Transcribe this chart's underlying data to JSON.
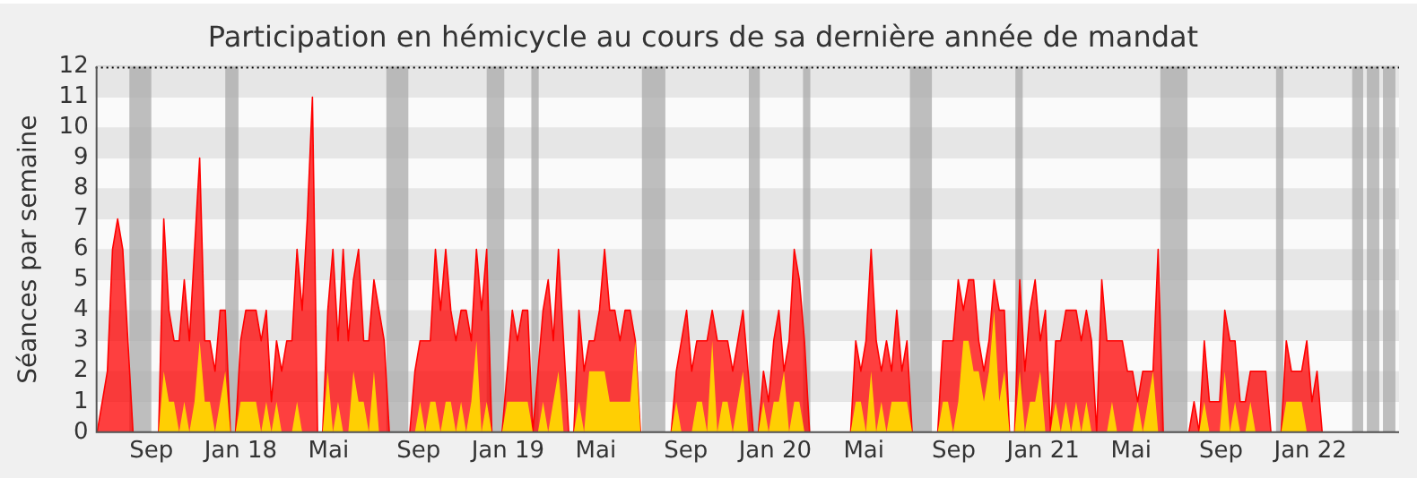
{
  "chart_data": {
    "type": "area",
    "title": "Participation en hémicycle au cours de sa dernière année de mandat",
    "ylabel": "Séances par semaine",
    "x": [
      "2017-06-19",
      "2017-06-26",
      "2017-07-03",
      "2017-07-10",
      "2017-07-17",
      "2017-07-24",
      "2017-07-31",
      "2017-08-07",
      "2017-08-14",
      "2017-08-21",
      "2017-08-28",
      "2017-09-04",
      "2017-09-11",
      "2017-09-18",
      "2017-09-25",
      "2017-10-02",
      "2017-10-09",
      "2017-10-16",
      "2017-10-23",
      "2017-10-30",
      "2017-11-06",
      "2017-11-13",
      "2017-11-20",
      "2017-11-27",
      "2017-12-04",
      "2017-12-11",
      "2017-12-18",
      "2017-12-25",
      "2018-01-01",
      "2018-01-08",
      "2018-01-15",
      "2018-01-22",
      "2018-01-29",
      "2018-02-05",
      "2018-02-12",
      "2018-02-19",
      "2018-02-26",
      "2018-03-05",
      "2018-03-12",
      "2018-03-19",
      "2018-03-26",
      "2018-04-02",
      "2018-04-09",
      "2018-04-16",
      "2018-04-23",
      "2018-04-30",
      "2018-05-07",
      "2018-05-14",
      "2018-05-21",
      "2018-05-28",
      "2018-06-04",
      "2018-06-11",
      "2018-06-18",
      "2018-06-25",
      "2018-07-02",
      "2018-07-09",
      "2018-07-16",
      "2018-07-23",
      "2018-07-30",
      "2018-08-06",
      "2018-08-13",
      "2018-08-20",
      "2018-08-27",
      "2018-09-03",
      "2018-09-10",
      "2018-09-17",
      "2018-09-24",
      "2018-10-01",
      "2018-10-08",
      "2018-10-15",
      "2018-10-22",
      "2018-10-29",
      "2018-11-05",
      "2018-11-12",
      "2018-11-19",
      "2018-11-26",
      "2018-12-03",
      "2018-12-10",
      "2018-12-17",
      "2018-12-24",
      "2018-12-31",
      "2019-01-07",
      "2019-01-14",
      "2019-01-21",
      "2019-01-28",
      "2019-02-04",
      "2019-02-11",
      "2019-02-18",
      "2019-02-25",
      "2019-03-04",
      "2019-03-11",
      "2019-03-18",
      "2019-03-25",
      "2019-04-01",
      "2019-04-08",
      "2019-04-15",
      "2019-04-22",
      "2019-04-29",
      "2019-05-06",
      "2019-05-13",
      "2019-05-20",
      "2019-05-27",
      "2019-06-03",
      "2019-06-10",
      "2019-06-17",
      "2019-06-24",
      "2019-07-01",
      "2019-07-08",
      "2019-07-15",
      "2019-07-22",
      "2019-07-29",
      "2019-08-05",
      "2019-08-12",
      "2019-08-19",
      "2019-08-26",
      "2019-09-02",
      "2019-09-09",
      "2019-09-16",
      "2019-09-23",
      "2019-09-30",
      "2019-10-07",
      "2019-10-14",
      "2019-10-21",
      "2019-10-28",
      "2019-11-04",
      "2019-11-11",
      "2019-11-18",
      "2019-11-25",
      "2019-12-02",
      "2019-12-09",
      "2019-12-16",
      "2019-12-23",
      "2019-12-30",
      "2020-01-06",
      "2020-01-13",
      "2020-01-20",
      "2020-01-27",
      "2020-02-03",
      "2020-02-10",
      "2020-02-17",
      "2020-02-24",
      "2020-03-02",
      "2020-03-09",
      "2020-03-16",
      "2020-03-23",
      "2020-03-30",
      "2020-04-06",
      "2020-04-13",
      "2020-04-20",
      "2020-04-27",
      "2020-05-04",
      "2020-05-11",
      "2020-05-18",
      "2020-05-25",
      "2020-06-01",
      "2020-06-08",
      "2020-06-15",
      "2020-06-22",
      "2020-06-29",
      "2020-07-06",
      "2020-07-13",
      "2020-07-20",
      "2020-07-27",
      "2020-08-03",
      "2020-08-10",
      "2020-08-17",
      "2020-08-24",
      "2020-08-31",
      "2020-09-07",
      "2020-09-14",
      "2020-09-21",
      "2020-09-28",
      "2020-10-05",
      "2020-10-12",
      "2020-10-19",
      "2020-10-26",
      "2020-11-02",
      "2020-11-09",
      "2020-11-16",
      "2020-11-23",
      "2020-11-30",
      "2020-12-07",
      "2020-12-14",
      "2020-12-21",
      "2020-12-28",
      "2021-01-04",
      "2021-01-11",
      "2021-01-18",
      "2021-01-25",
      "2021-02-01",
      "2021-02-08",
      "2021-02-15",
      "2021-02-22",
      "2021-03-01",
      "2021-03-08",
      "2021-03-15",
      "2021-03-22",
      "2021-03-29",
      "2021-04-05",
      "2021-04-12",
      "2021-04-19",
      "2021-04-26",
      "2021-05-03",
      "2021-05-10",
      "2021-05-17",
      "2021-05-24",
      "2021-05-31",
      "2021-06-07",
      "2021-06-14",
      "2021-06-21",
      "2021-06-28",
      "2021-07-05",
      "2021-07-12",
      "2021-07-19",
      "2021-07-26",
      "2021-08-02",
      "2021-08-09",
      "2021-08-16",
      "2021-08-23",
      "2021-08-30",
      "2021-09-06",
      "2021-09-13",
      "2021-09-20",
      "2021-09-27",
      "2021-10-04",
      "2021-10-11",
      "2021-10-18",
      "2021-10-25",
      "2021-11-01",
      "2021-11-08",
      "2021-11-15",
      "2021-11-22",
      "2021-11-29",
      "2021-12-06",
      "2021-12-13",
      "2021-12-20",
      "2021-12-27",
      "2022-01-03",
      "2022-01-10",
      "2022-01-17",
      "2022-01-24",
      "2022-01-31",
      "2022-02-07",
      "2022-02-14",
      "2022-02-21",
      "2022-02-28",
      "2022-03-07",
      "2022-03-14",
      "2022-03-21",
      "2022-03-28",
      "2022-04-04",
      "2022-04-11",
      "2022-04-18",
      "2022-04-25"
    ],
    "series": [
      {
        "color": "#ff0000",
        "values": [
          0,
          1,
          2,
          6,
          7,
          6,
          3,
          0,
          0,
          0,
          0,
          0,
          0,
          7,
          4,
          3,
          3,
          5,
          3,
          6,
          9,
          3,
          3,
          2,
          4,
          4,
          0,
          0,
          3,
          4,
          4,
          4,
          3,
          4,
          1,
          3,
          2,
          3,
          3,
          6,
          4,
          7,
          11,
          0,
          0,
          4,
          6,
          3,
          6,
          3,
          5,
          6,
          3,
          3,
          5,
          4,
          3,
          0,
          0,
          0,
          0,
          0,
          2,
          3,
          3,
          3,
          6,
          4,
          6,
          4,
          3,
          4,
          4,
          3,
          6,
          4,
          6,
          0,
          0,
          0,
          2,
          4,
          3,
          4,
          4,
          0,
          2,
          4,
          5,
          3,
          6,
          3,
          0,
          0,
          4,
          2,
          3,
          3,
          4,
          6,
          4,
          4,
          3,
          4,
          4,
          3,
          0,
          0,
          0,
          0,
          0,
          0,
          0,
          2,
          3,
          4,
          2,
          3,
          3,
          3,
          4,
          3,
          3,
          3,
          2,
          3,
          4,
          2,
          0,
          0,
          2,
          1,
          3,
          4,
          2,
          3,
          6,
          5,
          3,
          0,
          0,
          0,
          0,
          0,
          0,
          0,
          0,
          0,
          3,
          2,
          3,
          6,
          3,
          2,
          3,
          2,
          4,
          2,
          3,
          0,
          0,
          0,
          0,
          0,
          0,
          3,
          3,
          3,
          5,
          4,
          5,
          5,
          3,
          2,
          3,
          5,
          4,
          4,
          0,
          0,
          5,
          2,
          4,
          5,
          3,
          4,
          0,
          3,
          3,
          4,
          4,
          4,
          3,
          4,
          3,
          0,
          5,
          3,
          3,
          3,
          3,
          2,
          2,
          1,
          2,
          2,
          2,
          6,
          0,
          0,
          0,
          0,
          0,
          0,
          1,
          0,
          3,
          1,
          1,
          1,
          4,
          3,
          3,
          1,
          1,
          2,
          2,
          2,
          2,
          0,
          0,
          0,
          3,
          2,
          2,
          2,
          3,
          1,
          2,
          0,
          0,
          0,
          0,
          0,
          0,
          0,
          0,
          0,
          0,
          0,
          0,
          0,
          0,
          0
        ]
      },
      {
        "color": "#ffd700",
        "values": [
          0,
          0,
          0,
          0,
          0,
          0,
          0,
          0,
          0,
          0,
          0,
          0,
          0,
          2,
          1,
          1,
          0,
          1,
          0,
          1,
          3,
          1,
          1,
          0,
          1,
          2,
          0,
          0,
          1,
          1,
          1,
          1,
          0,
          1,
          0,
          1,
          0,
          0,
          0,
          1,
          0,
          0,
          0,
          0,
          0,
          2,
          0,
          1,
          0,
          0,
          2,
          1,
          1,
          0,
          2,
          0,
          0,
          0,
          0,
          0,
          0,
          0,
          0,
          1,
          0,
          1,
          1,
          0,
          1,
          1,
          0,
          1,
          0,
          1,
          3,
          0,
          1,
          0,
          0,
          0,
          1,
          1,
          1,
          1,
          1,
          0,
          0,
          1,
          0,
          1,
          2,
          0,
          0,
          0,
          1,
          0,
          2,
          2,
          2,
          2,
          1,
          1,
          1,
          1,
          1,
          3,
          0,
          0,
          0,
          0,
          0,
          0,
          0,
          1,
          0,
          0,
          0,
          1,
          1,
          0,
          3,
          0,
          1,
          1,
          0,
          1,
          2,
          0,
          0,
          0,
          1,
          0,
          1,
          1,
          2,
          0,
          1,
          1,
          0,
          0,
          0,
          0,
          0,
          0,
          0,
          0,
          0,
          0,
          1,
          1,
          0,
          2,
          0,
          1,
          0,
          1,
          1,
          1,
          1,
          0,
          0,
          0,
          0,
          0,
          0,
          1,
          1,
          0,
          1,
          3,
          3,
          2,
          2,
          1,
          2,
          4,
          1,
          2,
          0,
          0,
          2,
          0,
          1,
          1,
          2,
          0,
          0,
          1,
          0,
          1,
          0,
          1,
          0,
          1,
          0,
          0,
          0,
          0,
          1,
          0,
          0,
          0,
          0,
          1,
          0,
          1,
          2,
          0,
          0,
          0,
          0,
          0,
          0,
          0,
          0,
          0,
          1,
          0,
          0,
          0,
          2,
          0,
          1,
          0,
          0,
          1,
          0,
          0,
          0,
          0,
          0,
          0,
          1,
          1,
          1,
          1,
          0,
          0,
          0,
          0,
          0,
          0,
          0,
          0,
          0,
          0,
          0,
          0,
          0,
          0,
          0,
          0,
          0,
          0
        ]
      }
    ],
    "xlim": [
      "2017-06-17",
      "2022-05-02"
    ],
    "xticks": [
      {
        "value": "2017-09-01",
        "label": "Sep"
      },
      {
        "value": "2018-01-01",
        "label": "Jan 18"
      },
      {
        "value": "2018-05-01",
        "label": "Mai"
      },
      {
        "value": "2018-09-01",
        "label": "Sep"
      },
      {
        "value": "2019-01-01",
        "label": "Jan 19"
      },
      {
        "value": "2019-05-01",
        "label": "Mai"
      },
      {
        "value": "2019-09-01",
        "label": "Sep"
      },
      {
        "value": "2020-01-01",
        "label": "Jan 20"
      },
      {
        "value": "2020-05-01",
        "label": "Mai"
      },
      {
        "value": "2020-09-01",
        "label": "Sep"
      },
      {
        "value": "2021-01-01",
        "label": "Jan 21"
      },
      {
        "value": "2021-05-01",
        "label": "Mai"
      },
      {
        "value": "2021-09-01",
        "label": "Sep"
      },
      {
        "value": "2022-01-01",
        "label": "Jan 22"
      }
    ],
    "ylim": [
      0,
      12
    ],
    "yticks": [
      0,
      1,
      2,
      3,
      4,
      5,
      6,
      7,
      8,
      9,
      10,
      11,
      12
    ],
    "grid": "y",
    "legend": false,
    "bands": [
      {
        "axis": "x",
        "from": "2017-08-02",
        "to": "2017-09-01",
        "color": "#aaaaaa"
      },
      {
        "axis": "x",
        "from": "2017-12-11",
        "to": "2017-12-29",
        "color": "#aaaaaa"
      },
      {
        "axis": "x",
        "from": "2018-07-19",
        "to": "2018-08-18",
        "color": "#aaaaaa"
      },
      {
        "axis": "x",
        "from": "2018-12-03",
        "to": "2018-12-27",
        "color": "#aaaaaa"
      },
      {
        "axis": "x",
        "from": "2019-02-02",
        "to": "2019-02-12",
        "color": "#aaaaaa"
      },
      {
        "axis": "x",
        "from": "2019-07-03",
        "to": "2019-08-04",
        "color": "#aaaaaa"
      },
      {
        "axis": "x",
        "from": "2019-11-26",
        "to": "2019-12-11",
        "color": "#aaaaaa"
      },
      {
        "axis": "x",
        "from": "2020-02-08",
        "to": "2020-02-18",
        "color": "#aaaaaa"
      },
      {
        "axis": "x",
        "from": "2020-07-03",
        "to": "2020-08-02",
        "color": "#aaaaaa"
      },
      {
        "axis": "x",
        "from": "2020-11-24",
        "to": "2020-12-04",
        "color": "#aaaaaa"
      },
      {
        "axis": "x",
        "from": "2021-06-10",
        "to": "2021-07-17",
        "color": "#aaaaaa"
      },
      {
        "axis": "x",
        "from": "2021-11-15",
        "to": "2021-11-25",
        "color": "#aaaaaa"
      },
      {
        "axis": "x",
        "from": "2022-02-27",
        "to": "2022-03-14",
        "color": "#aaaaaa"
      },
      {
        "axis": "x",
        "from": "2022-03-19",
        "to": "2022-04-05",
        "color": "#aaaaaa"
      },
      {
        "axis": "x",
        "from": "2022-04-10",
        "to": "2022-04-27",
        "color": "#aaaaaa"
      }
    ]
  }
}
